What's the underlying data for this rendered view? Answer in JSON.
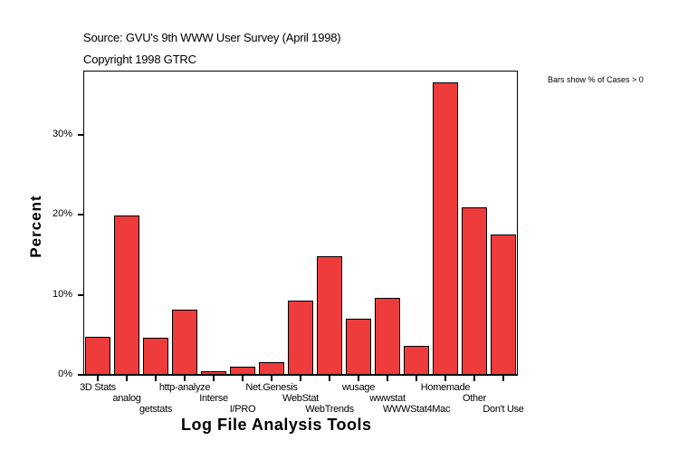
{
  "header": {
    "source": "Source: GVU's 9th WWW User Survey (April 1998)",
    "copyright": "Copyright 1998 GTRC"
  },
  "note": "Bars show % of Cases > 0",
  "colors": {
    "bar": "#ee3b3b",
    "outline": "#000000",
    "background": "#ffffff"
  },
  "y_ticks": [
    {
      "label": "0%",
      "value": 0
    },
    {
      "label": "10%",
      "value": 10
    },
    {
      "label": "20%",
      "value": 20
    },
    {
      "label": "30%",
      "value": 30
    }
  ],
  "chart_data": {
    "type": "bar",
    "title": "Source: GVU's 9th WWW User Survey (April 1998)",
    "subtitle": "Copyright 1998 GTRC",
    "annotation": "Bars show % of Cases > 0",
    "xlabel": "Log File Analysis Tools",
    "ylabel": "Percent",
    "ylim": [
      0,
      38
    ],
    "yticks": [
      "0%",
      "10%",
      "20%",
      "30%"
    ],
    "grid": false,
    "legend": null,
    "categories": [
      "3D Stats",
      "analog",
      "getstats",
      "http-analyze",
      "Interse",
      "I/PRO",
      "Net.Genesis",
      "WebStat",
      "WebTrends",
      "wusage",
      "wwwstat",
      "WWWStat4Mac",
      "Homemade",
      "Other",
      "Don't Use"
    ],
    "values": [
      4.7,
      19.9,
      4.6,
      8.1,
      0.45,
      1.0,
      1.6,
      9.3,
      14.8,
      7.0,
      9.6,
      3.6,
      36.5,
      20.9,
      17.5
    ]
  }
}
